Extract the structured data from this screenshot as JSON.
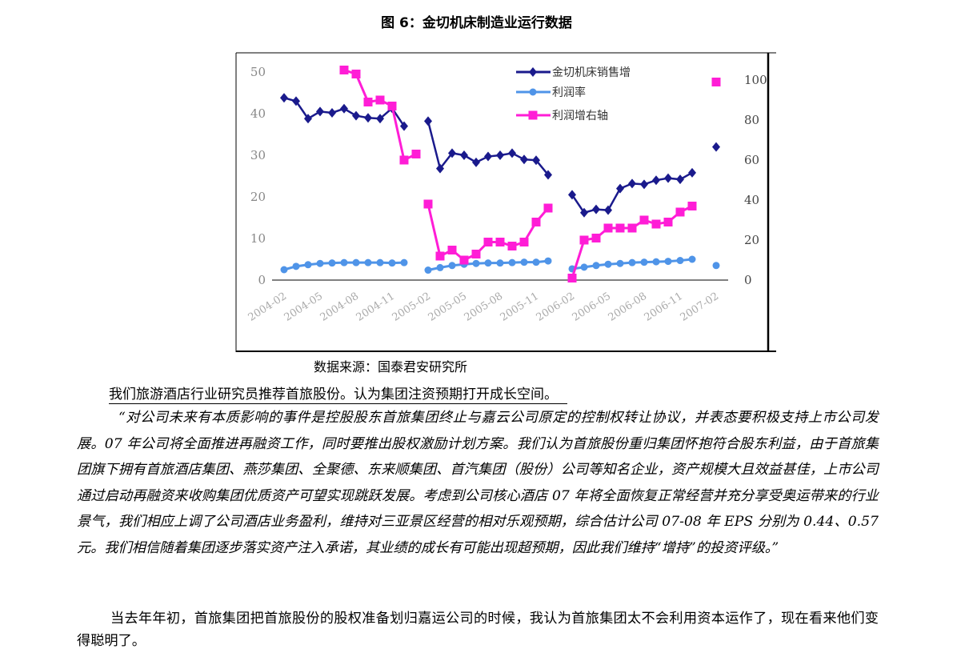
{
  "figure_title": "图 6：金切机床制造业运行数据",
  "source": "数据来源：国泰君安研究所",
  "heading": "我们旅游酒店行业研究员推荐首旅股份。认为集团注资预期打开成长空间。",
  "quote": "“对公司未来有本质影响的事件是控股股东首旅集团终止与嘉云公司原定的控制权转让协议，并表态要积极支持上市公司发展。07 年公司将全面推进再融资工作，同时要推出股权激励计划方案。我们认为首旅股份重归集团怀抱符合股东利益，由于首旅集团旗下拥有首旅酒店集团、燕莎集团、全聚德、东来顺集团、首汽集团（股份）公司等知名企业，资产规模大且效益甚佳，上市公司通过启动再融资来收购集团优质资产可望实现跳跃发展。考虑到公司核心酒店 07 年将全面恢复正常经营并充分享受奥运带来的行业景气，我们相应上调了公司酒店业务盈利，维持对三亚景区经营的相对乐观预期，综合估计公司 07-08 年 EPS 分别为 0.44、0.57 元。我们相信随着集团逐步落实资产注入承诺，其业绩的成长有可能出现超预期，因此我们维持“增持”的投资评级。”",
  "paragraph": "当去年年初，首旅集团把首旅股份的股权准备划归嘉运公司的时候，我认为首旅集团太不会利用资本运作了，现在看来他们变得聪明了。",
  "chart_data": {
    "type": "line",
    "x_tick_labels": [
      "2004-02",
      "2004-05",
      "2004-08",
      "2004-11",
      "2005-02",
      "2005-05",
      "2005-08",
      "2005-11",
      "2006-02",
      "2006-05",
      "2006-08",
      "2006-11",
      "2007-02"
    ],
    "y_left": {
      "ticks": [
        0,
        10,
        20,
        30,
        40,
        50
      ],
      "ylim": [
        0,
        50
      ]
    },
    "y_right": {
      "ticks": [
        0,
        20,
        40,
        60,
        80,
        100
      ],
      "ylim": [
        0,
        100
      ]
    },
    "legend": [
      "金切机床销售增",
      "利润率",
      "利润增右轴"
    ],
    "legend_position": "top-center",
    "colors": {
      "sales": "#1a1a8c",
      "margin": "#4f94e8",
      "profit": "#ff1dd6"
    },
    "series": [
      {
        "name": "金切机床销售增",
        "axis": "left",
        "segments": [
          {
            "x": [
              "2004-02",
              "2004-03",
              "2004-04",
              "2004-05",
              "2004-06",
              "2004-07",
              "2004-08",
              "2004-09",
              "2004-10",
              "2004-11",
              "2004-12"
            ],
            "y": [
              43.8,
              43,
              38.8,
              40.5,
              40.2,
              41.2,
              39.5,
              39,
              38.8,
              41.3,
              37
            ]
          },
          {
            "x": [
              "2005-02",
              "2005-03",
              "2005-04",
              "2005-05",
              "2005-06",
              "2005-07",
              "2005-08",
              "2005-09",
              "2005-10",
              "2005-11",
              "2005-12"
            ],
            "y": [
              38.2,
              26.8,
              30.5,
              30,
              28.3,
              29.7,
              30,
              30.5,
              29,
              28.8,
              25.3
            ]
          },
          {
            "x": [
              "2006-02",
              "2006-03",
              "2006-04",
              "2006-05",
              "2006-06",
              "2006-07",
              "2006-08",
              "2006-09",
              "2006-10",
              "2006-11",
              "2006-12"
            ],
            "y": [
              20.5,
              16.2,
              17,
              16.8,
              22,
              23.2,
              23,
              24,
              24.5,
              24.2,
              25.8
            ]
          },
          {
            "x": [
              "2007-02"
            ],
            "y": [
              32
            ]
          }
        ]
      },
      {
        "name": "利润率",
        "axis": "left",
        "segments": [
          {
            "x": [
              "2004-02",
              "2004-03",
              "2004-04",
              "2004-05",
              "2004-06",
              "2004-07",
              "2004-08",
              "2004-09",
              "2004-10",
              "2004-11",
              "2004-12"
            ],
            "y": [
              2.5,
              3.3,
              3.7,
              4,
              4.1,
              4.2,
              4.2,
              4.2,
              4.2,
              4.1,
              4.2
            ]
          },
          {
            "x": [
              "2005-02",
              "2005-03",
              "2005-04",
              "2005-05",
              "2005-06",
              "2005-07",
              "2005-08",
              "2005-09",
              "2005-10",
              "2005-11",
              "2005-12"
            ],
            "y": [
              2.4,
              3,
              3.5,
              3.8,
              4,
              4.1,
              4.1,
              4.2,
              4.3,
              4.3,
              4.6
            ]
          },
          {
            "x": [
              "2006-02",
              "2006-03",
              "2006-04",
              "2006-05",
              "2006-06",
              "2006-07",
              "2006-08",
              "2006-09",
              "2006-10",
              "2006-11",
              "2006-12"
            ],
            "y": [
              2.7,
              3.1,
              3.5,
              3.8,
              4,
              4.2,
              4.3,
              4.4,
              4.5,
              4.7,
              5
            ]
          },
          {
            "x": [
              "2007-02"
            ],
            "y": [
              3.5
            ]
          }
        ]
      },
      {
        "name": "利润增右轴",
        "axis": "right",
        "segments": [
          {
            "x": [
              "2004-07",
              "2004-08",
              "2004-09",
              "2004-10",
              "2004-11",
              "2004-12",
              "2005-01"
            ],
            "y": [
              105,
              103,
              89,
              90,
              87,
              60,
              63
            ]
          },
          {
            "x": [
              "2005-02",
              "2005-03",
              "2005-04",
              "2005-05",
              "2005-06",
              "2005-07",
              "2005-08",
              "2005-09",
              "2005-10",
              "2005-11",
              "2005-12"
            ],
            "y": [
              38,
              12,
              15,
              10,
              13,
              19,
              19,
              17,
              19,
              29,
              36
            ]
          },
          {
            "x": [
              "2006-02",
              "2006-03",
              "2006-04",
              "2006-05",
              "2006-06",
              "2006-07",
              "2006-08",
              "2006-09",
              "2006-10",
              "2006-11",
              "2006-12"
            ],
            "y": [
              1,
              20,
              21,
              26,
              26,
              26,
              30,
              28,
              29,
              34,
              37
            ]
          },
          {
            "x": [
              "2007-02"
            ],
            "y": [
              99
            ]
          }
        ]
      }
    ]
  }
}
